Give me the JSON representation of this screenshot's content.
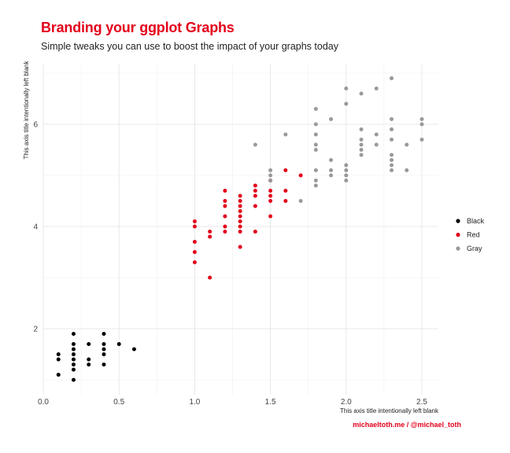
{
  "title": "Branding your ggplot Graphs",
  "subtitle": "Simple tweaks you can use to boost the impact of your graphs today",
  "caption": "michaeltoth.me / @michael_toth",
  "colors": {
    "accent": "#e3001b",
    "Black": "#000000",
    "Red": "#e3001b",
    "Gray": "#999999",
    "grid": "#e6e6e6"
  },
  "chart_data": {
    "type": "scatter",
    "title": "Branding your ggplot Graphs",
    "subtitle": "Simple tweaks you can use to boost the impact of your graphs today",
    "xlabel": "This axis title intentionally left blank",
    "ylabel": "This axis title intentionally left blank",
    "xlim": [
      0.0,
      2.6
    ],
    "ylim": [
      0.9,
      7.0
    ],
    "xticks": [
      "0.0",
      "0.5",
      "1.0",
      "1.5",
      "2.0",
      "2.5"
    ],
    "yticks": [
      "2",
      "4",
      "6"
    ],
    "grid": true,
    "legend": {
      "position": "right",
      "entries": [
        "Black",
        "Red",
        "Gray"
      ]
    },
    "series": [
      {
        "name": "Black",
        "points": [
          [
            0.1,
            1.1
          ],
          [
            0.1,
            1.4
          ],
          [
            0.1,
            1.5
          ],
          [
            0.2,
            1.0
          ],
          [
            0.2,
            1.2
          ],
          [
            0.2,
            1.3
          ],
          [
            0.2,
            1.4
          ],
          [
            0.2,
            1.5
          ],
          [
            0.2,
            1.6
          ],
          [
            0.2,
            1.7
          ],
          [
            0.2,
            1.9
          ],
          [
            0.3,
            1.3
          ],
          [
            0.3,
            1.4
          ],
          [
            0.3,
            1.7
          ],
          [
            0.4,
            1.3
          ],
          [
            0.4,
            1.5
          ],
          [
            0.4,
            1.6
          ],
          [
            0.4,
            1.7
          ],
          [
            0.4,
            1.9
          ],
          [
            0.5,
            1.7
          ],
          [
            0.6,
            1.6
          ]
        ]
      },
      {
        "name": "Red",
        "points": [
          [
            1.0,
            3.3
          ],
          [
            1.0,
            3.5
          ],
          [
            1.0,
            3.7
          ],
          [
            1.0,
            4.0
          ],
          [
            1.0,
            4.1
          ],
          [
            1.1,
            3.0
          ],
          [
            1.1,
            3.8
          ],
          [
            1.1,
            3.9
          ],
          [
            1.2,
            3.9
          ],
          [
            1.2,
            4.0
          ],
          [
            1.2,
            4.2
          ],
          [
            1.2,
            4.4
          ],
          [
            1.2,
            4.5
          ],
          [
            1.2,
            4.7
          ],
          [
            1.3,
            3.6
          ],
          [
            1.3,
            3.9
          ],
          [
            1.3,
            4.0
          ],
          [
            1.3,
            4.1
          ],
          [
            1.3,
            4.2
          ],
          [
            1.3,
            4.3
          ],
          [
            1.3,
            4.4
          ],
          [
            1.3,
            4.5
          ],
          [
            1.3,
            4.6
          ],
          [
            1.4,
            3.9
          ],
          [
            1.4,
            4.4
          ],
          [
            1.4,
            4.6
          ],
          [
            1.4,
            4.7
          ],
          [
            1.4,
            4.8
          ],
          [
            1.5,
            4.2
          ],
          [
            1.5,
            4.5
          ],
          [
            1.5,
            4.6
          ],
          [
            1.5,
            4.7
          ],
          [
            1.5,
            4.9
          ],
          [
            1.6,
            4.5
          ],
          [
            1.6,
            4.7
          ],
          [
            1.6,
            5.1
          ],
          [
            1.7,
            5.0
          ]
        ]
      },
      {
        "name": "Gray",
        "points": [
          [
            1.4,
            5.6
          ],
          [
            1.5,
            4.9
          ],
          [
            1.5,
            5.0
          ],
          [
            1.5,
            5.1
          ],
          [
            1.6,
            5.8
          ],
          [
            1.7,
            4.5
          ],
          [
            1.8,
            4.8
          ],
          [
            1.8,
            4.9
          ],
          [
            1.8,
            5.1
          ],
          [
            1.8,
            5.5
          ],
          [
            1.8,
            5.6
          ],
          [
            1.8,
            5.8
          ],
          [
            1.8,
            6.0
          ],
          [
            1.8,
            6.3
          ],
          [
            1.9,
            5.0
          ],
          [
            1.9,
            5.1
          ],
          [
            1.9,
            5.3
          ],
          [
            1.9,
            6.1
          ],
          [
            2.0,
            4.9
          ],
          [
            2.0,
            5.0
          ],
          [
            2.0,
            5.1
          ],
          [
            2.0,
            5.2
          ],
          [
            2.0,
            6.4
          ],
          [
            2.0,
            6.7
          ],
          [
            2.1,
            5.4
          ],
          [
            2.1,
            5.5
          ],
          [
            2.1,
            5.6
          ],
          [
            2.1,
            5.7
          ],
          [
            2.1,
            5.9
          ],
          [
            2.1,
            6.6
          ],
          [
            2.2,
            5.6
          ],
          [
            2.2,
            5.8
          ],
          [
            2.2,
            6.7
          ],
          [
            2.3,
            5.1
          ],
          [
            2.3,
            5.2
          ],
          [
            2.3,
            5.3
          ],
          [
            2.3,
            5.4
          ],
          [
            2.3,
            5.7
          ],
          [
            2.3,
            5.9
          ],
          [
            2.3,
            6.1
          ],
          [
            2.3,
            6.9
          ],
          [
            2.4,
            5.1
          ],
          [
            2.4,
            5.6
          ],
          [
            2.5,
            5.7
          ],
          [
            2.5,
            6.0
          ],
          [
            2.5,
            6.1
          ]
        ]
      }
    ]
  }
}
